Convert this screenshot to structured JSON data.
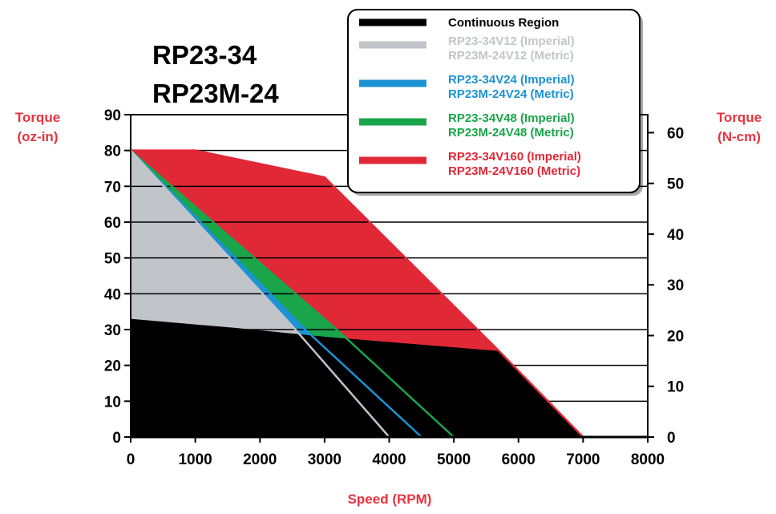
{
  "chart_data": {
    "type": "area",
    "title_lines": [
      "RP23-34",
      "RP23M-24"
    ],
    "xlabel": "Speed (RPM)",
    "ylabel_left": [
      "Torque",
      "(oz-in)"
    ],
    "ylabel_right": [
      "Torque",
      "(N-cm)"
    ],
    "xlim": [
      0,
      8000
    ],
    "ylim_left": [
      0,
      90
    ],
    "ylim_right": [
      0,
      63.55
    ],
    "x_ticks": [
      0,
      1000,
      2000,
      3000,
      4000,
      5000,
      6000,
      7000,
      8000
    ],
    "y_ticks_left": [
      0,
      10,
      20,
      30,
      40,
      50,
      60,
      70,
      80,
      90
    ],
    "y_ticks_right": [
      0,
      10,
      20,
      30,
      40,
      50,
      60
    ],
    "grid": "horizontal",
    "legend_position": "top-right",
    "series": [
      {
        "name": "RP23-34V160 (Imperial)",
        "name2": "RP23M-24V160 (Metric)",
        "color": "#e12837",
        "points": [
          [
            0,
            80
          ],
          [
            1000,
            80
          ],
          [
            3000,
            72.5
          ],
          [
            5700,
            24
          ],
          [
            7000,
            0
          ]
        ]
      },
      {
        "name": "RP23-34V48 (Imperial)",
        "name2": "RP23M-24V48 (Metric)",
        "color": "#1aa54b",
        "points": [
          [
            0,
            80
          ],
          [
            3250,
            29
          ],
          [
            5000,
            0
          ]
        ]
      },
      {
        "name": "RP23-34V24 (Imperial)",
        "name2": "RP23M-24V24 (Metric)",
        "color": "#1b93d4",
        "points": [
          [
            0,
            80
          ],
          [
            2700,
            30
          ],
          [
            4500,
            0
          ]
        ]
      },
      {
        "name": "RP23-34V12 (Imperial)",
        "name2": "RP23M-24V12 (Metric)",
        "color": "#c1c5c9",
        "points": [
          [
            0,
            80
          ],
          [
            2500,
            31
          ],
          [
            4000,
            0
          ]
        ]
      },
      {
        "name": "Continuous Region",
        "name2": "",
        "color": "#000000",
        "points": [
          [
            0,
            33
          ],
          [
            1600,
            30.5
          ],
          [
            3000,
            28
          ],
          [
            5700,
            24
          ],
          [
            7000,
            0
          ]
        ]
      }
    ]
  }
}
